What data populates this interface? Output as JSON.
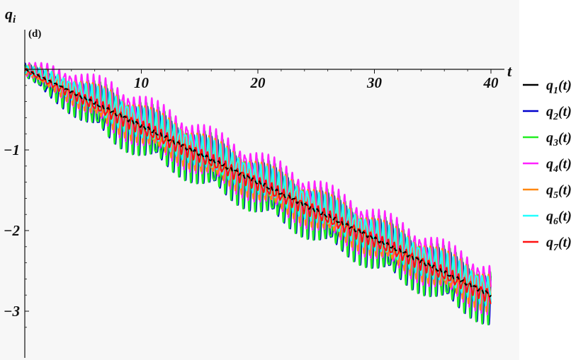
{
  "chart_data": {
    "type": "line",
    "panel_label": "(d)",
    "xlabel": "t",
    "ylabel_base": "q",
    "ylabel_sub": "i",
    "xlim": [
      0,
      40
    ],
    "ylim": [
      -3.5,
      0.35
    ],
    "x_ticks": [
      {
        "value": 10,
        "label": "10"
      },
      {
        "value": 20,
        "label": "20"
      },
      {
        "value": 30,
        "label": "30"
      },
      {
        "value": 40,
        "label": "40"
      }
    ],
    "y_ticks": [
      {
        "value": -1,
        "label": "−1"
      },
      {
        "value": -2,
        "label": "−2"
      },
      {
        "value": -3,
        "label": "−3"
      }
    ],
    "grid": false,
    "legend_position": "right",
    "drift_per_unit_t": -0.07,
    "series": [
      {
        "name_base": "q",
        "name_sub": "1",
        "name_tail": "(t)",
        "color": "#000000",
        "style": "dashed",
        "amplitude_end": 0.02,
        "offset": 0.0,
        "frequency": 2.0
      },
      {
        "name_base": "q",
        "name_sub": "2",
        "name_tail": "(t)",
        "color": "#0000cc",
        "style": "solid",
        "amplitude_end": 0.26,
        "offset": -0.06,
        "frequency": 2.0
      },
      {
        "name_base": "q",
        "name_sub": "3",
        "name_tail": "(t)",
        "color": "#22ee22",
        "style": "solid",
        "amplitude_end": 0.28,
        "offset": -0.04,
        "frequency": 2.0
      },
      {
        "name_base": "q",
        "name_sub": "4",
        "name_tail": "(t)",
        "color": "#ff22ff",
        "style": "solid",
        "amplitude_end": 0.26,
        "offset": 0.06,
        "frequency": 2.0
      },
      {
        "name_base": "q",
        "name_sub": "5",
        "name_tail": "(t)",
        "color": "#ff8811",
        "style": "solid",
        "amplitude_end": 0.2,
        "offset": 0.02,
        "frequency": 2.0
      },
      {
        "name_base": "q",
        "name_sub": "6",
        "name_tail": "(t)",
        "color": "#22ffff",
        "style": "solid",
        "amplitude_end": 0.16,
        "offset": 0.04,
        "frequency": 2.0
      },
      {
        "name_base": "q",
        "name_sub": "7",
        "name_tail": "(t)",
        "color": "#ff1111",
        "style": "solid",
        "amplitude_end": 0.07,
        "offset": -0.02,
        "frequency": 2.0
      }
    ]
  }
}
